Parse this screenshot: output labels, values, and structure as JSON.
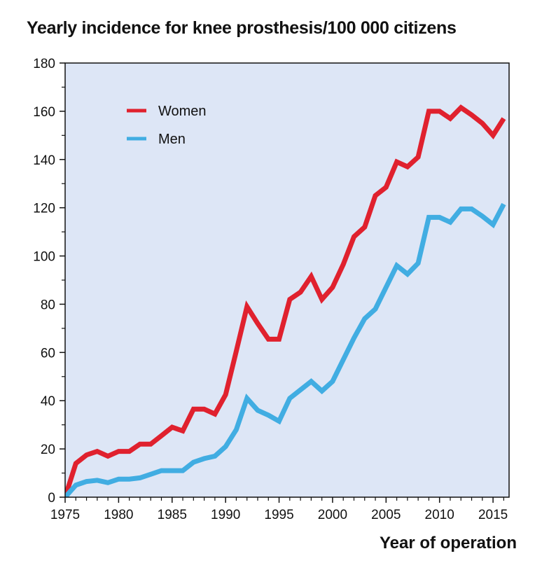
{
  "chart_data": {
    "type": "line",
    "title": "Yearly incidence for knee prosthesis/100 000 citizens",
    "xlabel": "Year of operation",
    "ylabel": "",
    "xlim": [
      1975,
      2016.5
    ],
    "ylim": [
      0,
      180
    ],
    "x_ticks": [
      1975,
      1980,
      1985,
      1990,
      1995,
      2000,
      2005,
      2010,
      2015
    ],
    "y_ticks": [
      0,
      20,
      40,
      60,
      80,
      100,
      120,
      140,
      160,
      180
    ],
    "x_tick_labels": [
      "1975",
      "1980",
      "1985",
      "1990",
      "1995",
      "2000",
      "2005",
      "2010",
      "2015"
    ],
    "y_tick_labels": [
      "0",
      "20",
      "40",
      "60",
      "80",
      "100",
      "120",
      "140",
      "160",
      "180"
    ],
    "grid": false,
    "background_color": "#dde6f6",
    "legend_position": "top-left",
    "x": [
      1975,
      1976,
      1977,
      1978,
      1979,
      1980,
      1981,
      1982,
      1983,
      1984,
      1985,
      1986,
      1987,
      1988,
      1989,
      1990,
      1991,
      1992,
      1993,
      1994,
      1995,
      1996,
      1997,
      1998,
      1999,
      2000,
      2001,
      2002,
      2003,
      2004,
      2005,
      2006,
      2007,
      2008,
      2009,
      2010,
      2011,
      2012,
      2013,
      2014,
      2015,
      2016
    ],
    "series": [
      {
        "name": "Women",
        "color": "#e0212e",
        "values": [
          0,
          14,
          17.5,
          19,
          17,
          19,
          19,
          22,
          22,
          25.5,
          29,
          27.5,
          36.5,
          36.5,
          34.5,
          42.5,
          60.5,
          79,
          72,
          65.5,
          65.5,
          82,
          85,
          91.5,
          82,
          87,
          96.5,
          108,
          112,
          125,
          128.5,
          139,
          137,
          141,
          160,
          160,
          157,
          161.5,
          158.5,
          155,
          150,
          157
        ]
      },
      {
        "name": "Men",
        "color": "#41ade2",
        "values": [
          0,
          5,
          6.5,
          7,
          6,
          7.5,
          7.5,
          8,
          9.5,
          11,
          11,
          11,
          14.5,
          16,
          17,
          21,
          28,
          41,
          36,
          34,
          31.5,
          41,
          44.5,
          48,
          44,
          48,
          57,
          66,
          74,
          78,
          87,
          96,
          92.5,
          97,
          116,
          116,
          114,
          119.5,
          119.5,
          116.5,
          113,
          121.5
        ]
      }
    ]
  }
}
